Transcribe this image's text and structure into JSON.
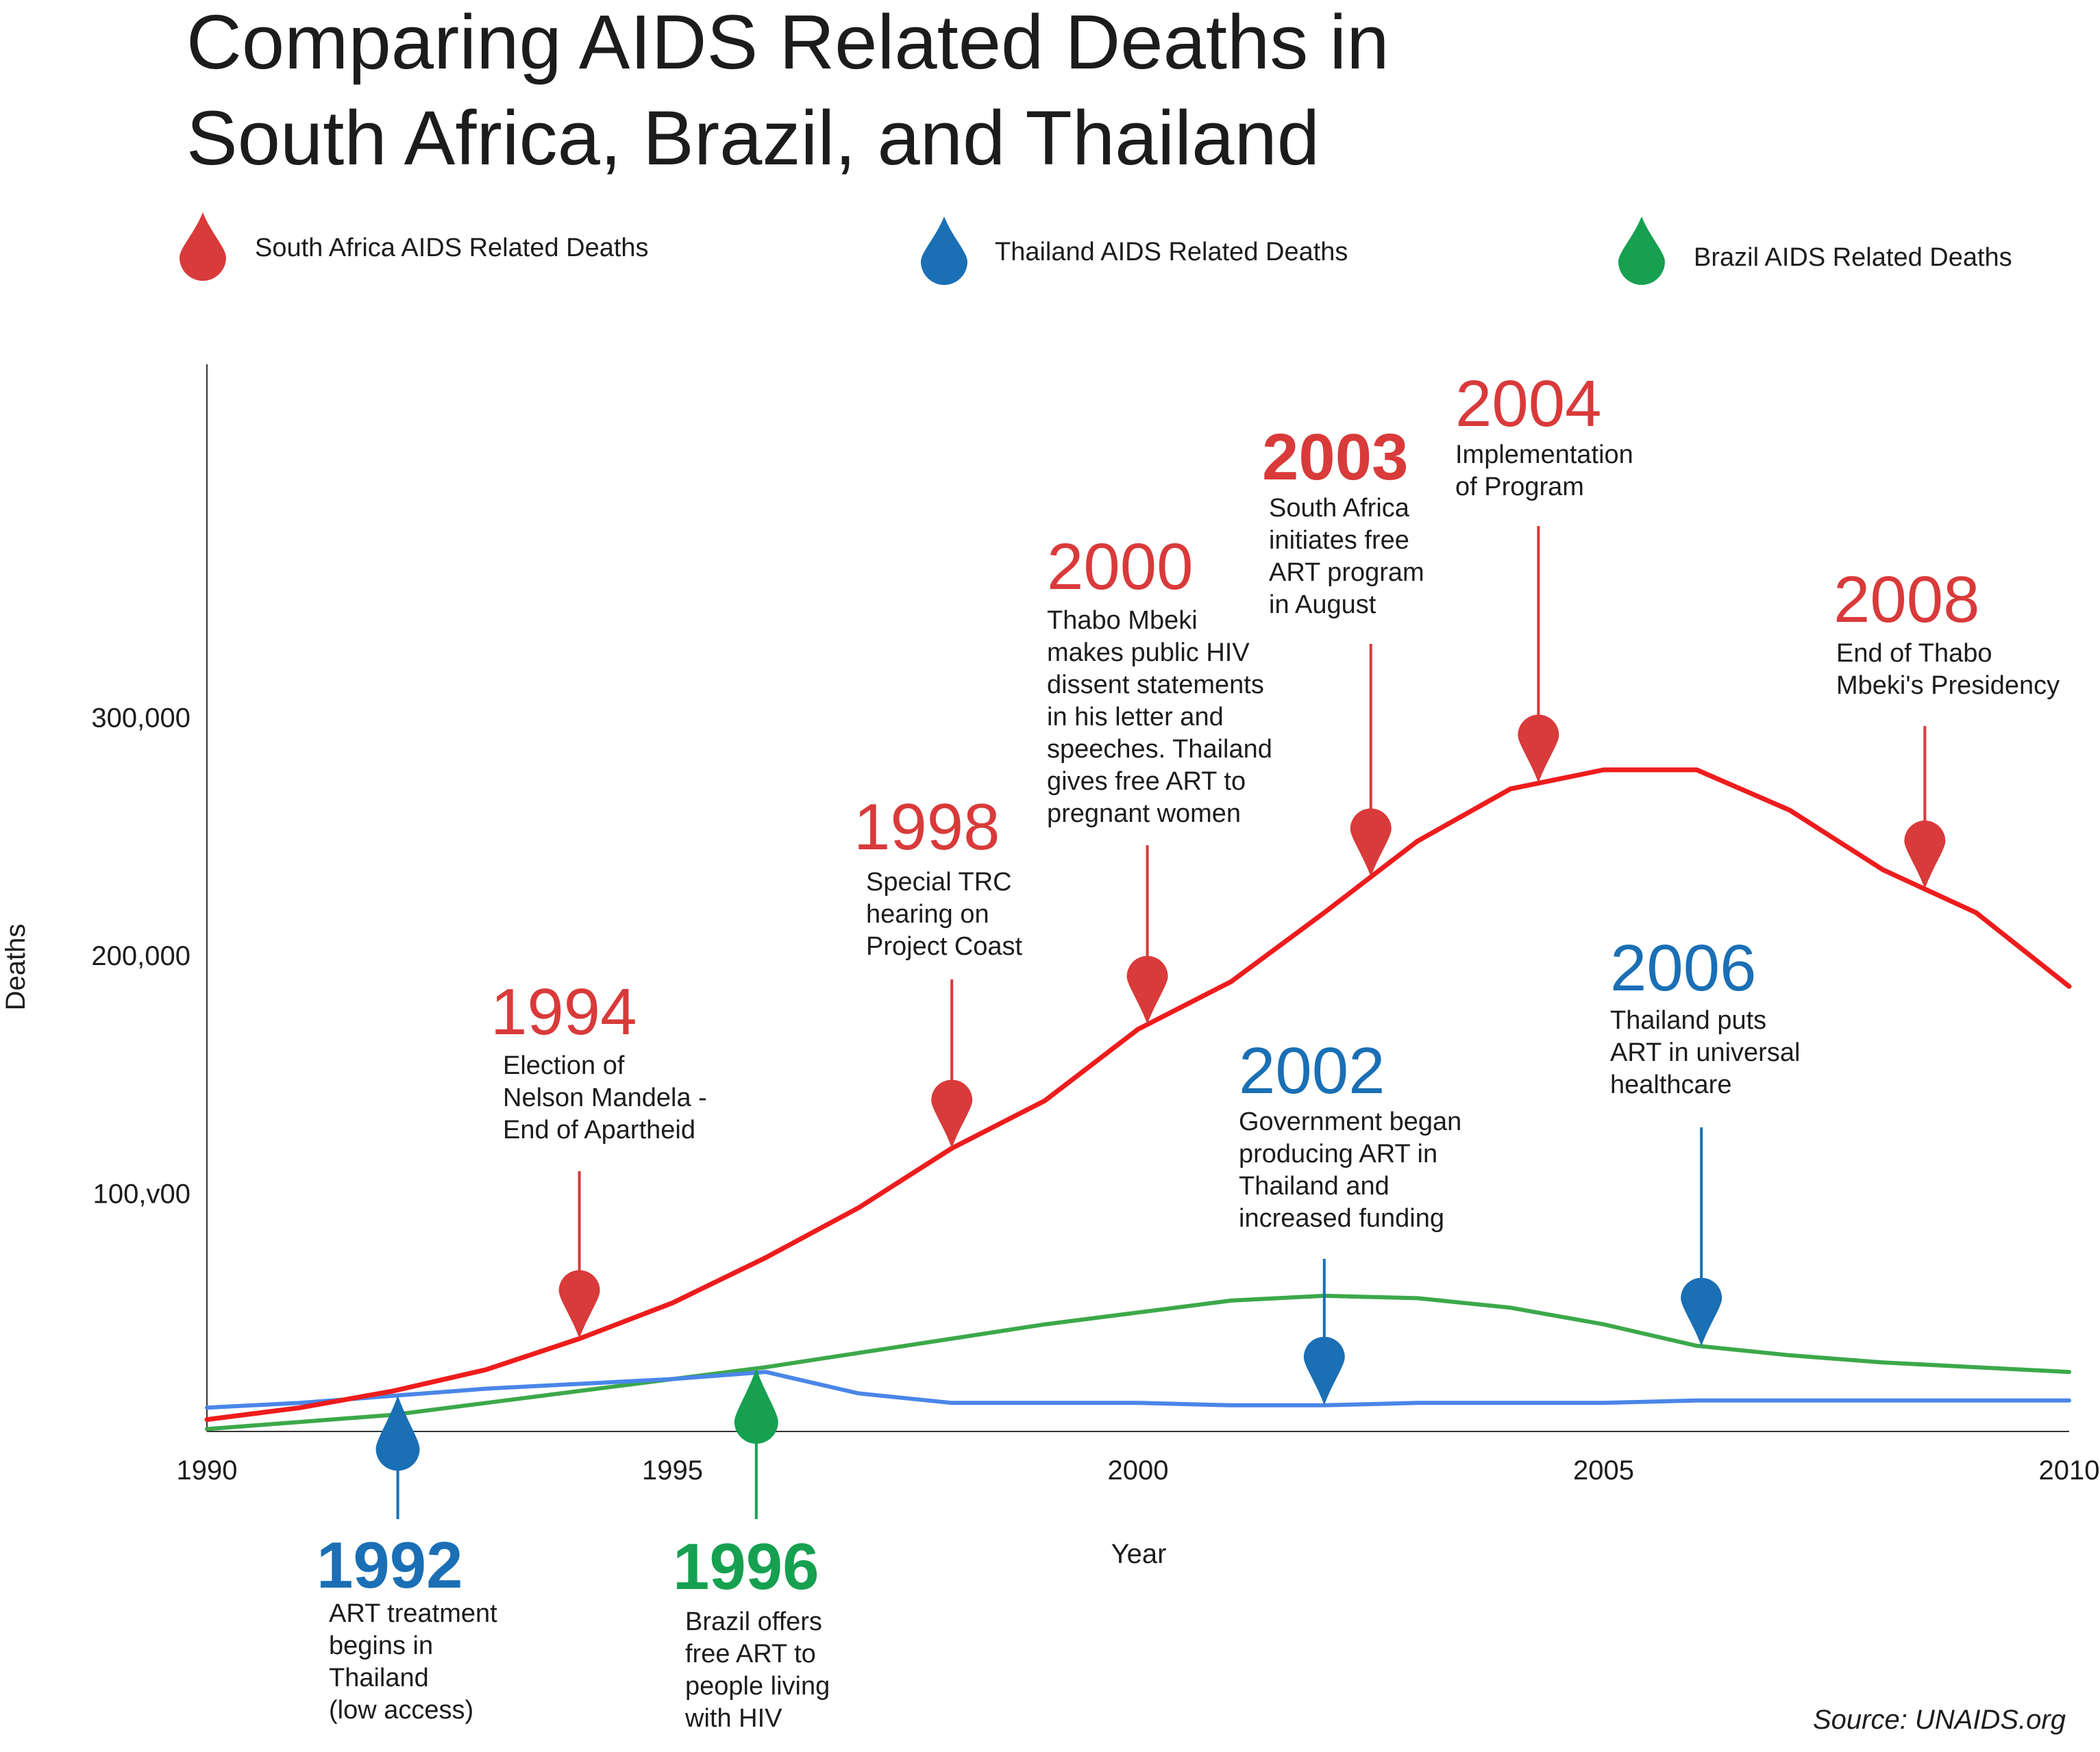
{
  "title": [
    "Comparing AIDS Related Deaths in",
    "South Africa, Brazil, and Thailand"
  ],
  "source": "Source: UNAIDS.org",
  "colors": {
    "south_africa": "#d93a3a",
    "thailand": "#1a6fb5",
    "brazil": "#16a050",
    "south_africa_line": "#ee1c1c",
    "thailand_line": "#4a86e8",
    "brazil_line": "#3ca84a"
  },
  "legend": [
    {
      "label": "South Africa AIDS Related Deaths",
      "color_key": "south_africa",
      "icon": "drop-icon"
    },
    {
      "label": "Thailand AIDS Related Deaths",
      "color_key": "thailand",
      "icon": "drop-icon"
    },
    {
      "label": "Brazil AIDS Related Deaths",
      "color_key": "brazil",
      "icon": "drop-icon"
    }
  ],
  "chart_data": {
    "type": "line",
    "title": "Comparing AIDS Related Deaths in South Africa, Brazil, and Thailand",
    "xlabel": "Year",
    "ylabel": "Deaths",
    "xlim": [
      1990,
      2010
    ],
    "ylim": [
      0,
      450000
    ],
    "x_ticks": [
      1990,
      1995,
      2000,
      2005,
      2010
    ],
    "y_ticks": [
      {
        "value": 100000,
        "label": "100,v00"
      },
      {
        "value": 200000,
        "label": "200,000"
      },
      {
        "value": 300000,
        "label": "300,000"
      }
    ],
    "grid": false,
    "series": [
      {
        "name": "South Africa AIDS Related Deaths",
        "color_key": "south_africa_line",
        "x": [
          1990,
          1991,
          1992,
          1993,
          1994,
          1995,
          1996,
          1997,
          1998,
          1999,
          2000,
          2001,
          2002,
          2003,
          2004,
          2005,
          2006,
          2007,
          2008,
          2009,
          2010
        ],
        "values": [
          5000,
          10000,
          17000,
          26000,
          39000,
          54000,
          73000,
          94000,
          119000,
          139000,
          169000,
          189000,
          218000,
          248000,
          270000,
          278000,
          278000,
          261000,
          236000,
          218000,
          187000
        ]
      },
      {
        "name": "Thailand AIDS Related Deaths",
        "color_key": "thailand_line",
        "x": [
          1990,
          1991,
          1992,
          1993,
          1994,
          1995,
          1996,
          1997,
          1998,
          1999,
          2000,
          2001,
          2002,
          2003,
          2004,
          2005,
          2006,
          2007,
          2008,
          2009,
          2010
        ],
        "values": [
          10000,
          12000,
          15000,
          18000,
          20000,
          22000,
          25000,
          16000,
          12000,
          12000,
          12000,
          11000,
          11000,
          12000,
          12000,
          12000,
          13000,
          13000,
          13000,
          13000,
          13000
        ]
      },
      {
        "name": "Brazil AIDS Related Deaths",
        "color_key": "brazil_line",
        "x": [
          1990,
          1991,
          1992,
          1993,
          1994,
          1995,
          1996,
          1997,
          1998,
          1999,
          2000,
          2001,
          2002,
          2003,
          2004,
          2005,
          2006,
          2007,
          2008,
          2009,
          2010
        ],
        "values": [
          1000,
          4000,
          7000,
          12000,
          17000,
          22000,
          27000,
          33000,
          39000,
          45000,
          50000,
          55000,
          57000,
          56000,
          52000,
          45000,
          36000,
          32000,
          29000,
          27000,
          25000
        ]
      }
    ],
    "annotations": [
      {
        "year": "1992",
        "color_key": "thailand",
        "style": "bold",
        "at_x": 1992.05,
        "series_key": "thailand_line",
        "side": "below",
        "text": [
          "ART treatment",
          "begins in",
          "Thailand",
          "(low access)"
        ]
      },
      {
        "year": "1994",
        "color_key": "south_africa",
        "style": "normal",
        "at_x": 1994,
        "series_key": "south_africa_line",
        "side": "above",
        "text": [
          "Election of",
          "Nelson Mandela -",
          "End of Apartheid"
        ]
      },
      {
        "year": "1996",
        "color_key": "brazil",
        "style": "bold",
        "at_x": 1995.9,
        "series_key": "brazil_line",
        "side": "below",
        "text": [
          "Brazil offers",
          "free ART to",
          "people living",
          "with HIV"
        ]
      },
      {
        "year": "1998",
        "color_key": "south_africa",
        "style": "normal",
        "at_x": 1998,
        "series_key": "south_africa_line",
        "side": "above",
        "text": [
          "Special TRC",
          "hearing on",
          "Project Coast"
        ]
      },
      {
        "year": "2000",
        "color_key": "south_africa",
        "style": "normal",
        "at_x": 2000.1,
        "series_key": "south_africa_line",
        "side": "above",
        "text": [
          "Thabo Mbeki",
          "makes public HIV",
          "dissent statements",
          "in his letter and",
          "speeches. Thailand",
          "gives free ART to",
          "pregnant women"
        ]
      },
      {
        "year": "2002",
        "color_key": "thailand",
        "style": "normal",
        "at_x": 2002,
        "series_key": "thailand_line",
        "side": "above",
        "text": [
          "Government began",
          "producing ART in",
          "Thailand and",
          "increased funding"
        ]
      },
      {
        "year": "2003",
        "color_key": "south_africa",
        "style": "bold",
        "at_x": 2002.5,
        "series_key": "south_africa_line",
        "side": "above",
        "text": [
          "South Africa",
          "initiates free",
          "ART program",
          "in August"
        ]
      },
      {
        "year": "2004",
        "color_key": "south_africa",
        "style": "normal",
        "at_x": 2004.3,
        "series_key": "south_africa_line",
        "side": "above",
        "text": [
          "Implementation",
          "of Program"
        ]
      },
      {
        "year": "2006",
        "color_key": "thailand",
        "style": "normal",
        "at_x": 2006.05,
        "series_key": "brazil_line",
        "side": "above",
        "text": [
          "Thailand puts",
          "ART in universal",
          "healthcare"
        ]
      },
      {
        "year": "2008",
        "color_key": "south_africa",
        "style": "normal",
        "at_x": 2008.45,
        "series_key": "south_africa_line",
        "side": "above",
        "text": [
          "End of Thabo",
          "Mbeki's Presidency"
        ]
      }
    ]
  }
}
